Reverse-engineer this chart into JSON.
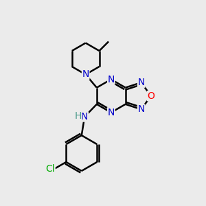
{
  "background_color": "#ebebeb",
  "atom_colors": {
    "N": "#0000cc",
    "O": "#ff0000",
    "C": "#000000",
    "Cl": "#00aa00",
    "H": "#4a9a8a",
    "NH_H": "#4a9a8a",
    "NH_N": "#0000cc"
  },
  "bond_color": "#000000",
  "bond_width": 1.8,
  "figsize": [
    3.0,
    3.0
  ],
  "dpi": 100,
  "font_size": 10
}
